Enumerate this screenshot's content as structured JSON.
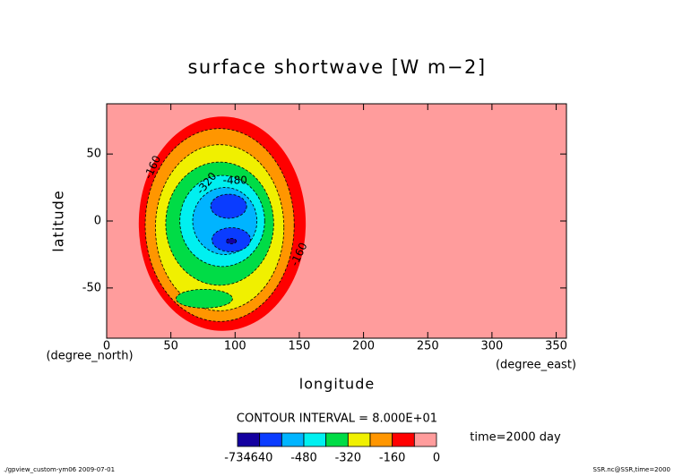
{
  "chart_data": {
    "type": "contour",
    "title": "surface shortwave [W m−2]",
    "xlabel": "longitude",
    "ylabel": "latitude",
    "xunit": "(degree_east)",
    "yunit": "(degree_north)",
    "xlim": [
      0,
      358
    ],
    "ylim": [
      -87.5,
      87.5
    ],
    "xticks": [
      0,
      50,
      100,
      150,
      200,
      250,
      300,
      350
    ],
    "yticks": [
      -50,
      0,
      50
    ],
    "levels": [
      -734,
      -640,
      -560,
      -480,
      -400,
      -320,
      -240,
      -160,
      -80,
      0
    ],
    "colors": [
      "#1400a0",
      "#0a3cff",
      "#00b4ff",
      "#00f0f0",
      "#00dc46",
      "#f0f000",
      "#ff9600",
      "#ff0000",
      "#ff9c9c"
    ],
    "colorbar_ticks": [
      -734,
      -640,
      -480,
      -320,
      -160,
      0
    ],
    "contour_labels": [
      -160,
      -320,
      -480,
      -160
    ],
    "interval_note": "CONTOUR INTERVAL = 8.000E+01",
    "time_note": "time=2000 day",
    "footer_left": "./gpview_custom-ym06  2009-07-01",
    "footer_right": "SSR.nc@SSR,time=2000"
  }
}
